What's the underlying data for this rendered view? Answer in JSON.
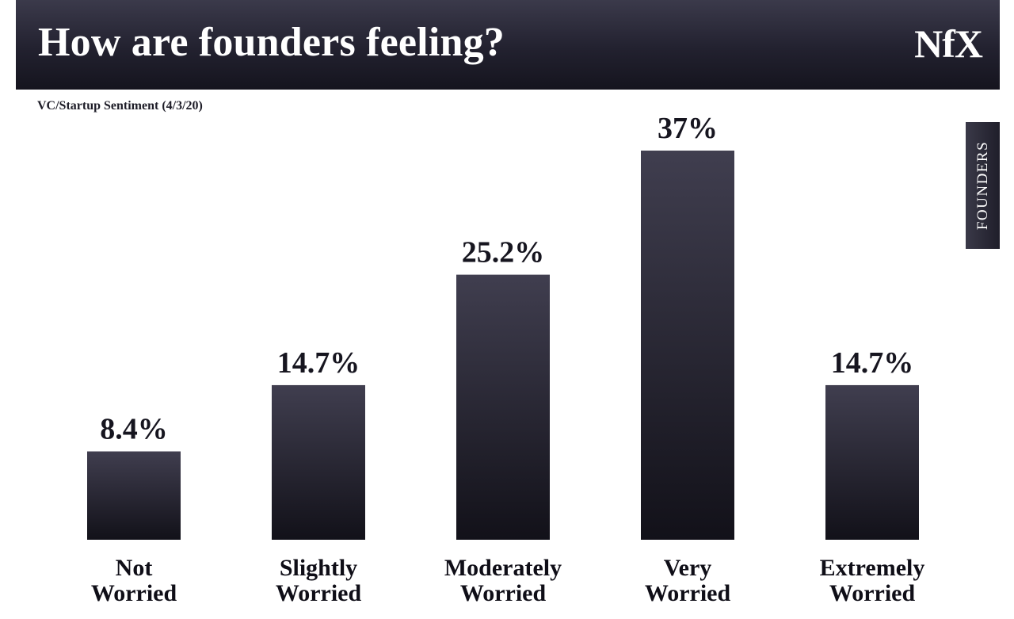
{
  "header": {
    "title": "How are founders feeling?",
    "brand": "NfX"
  },
  "side_tab": {
    "label": "FOUNDERS"
  },
  "colors": {
    "bar_top": "#403e4f",
    "bar_bottom": "#121119",
    "header_bg": "#22212f",
    "text": "#16151f"
  },
  "chart_data": {
    "type": "bar",
    "title": "How are founders feeling?",
    "subtitle": "VC/Startup Sentiment (4/3/20)",
    "xlabel": "",
    "ylabel": "",
    "ylim": [
      0,
      40
    ],
    "grid": false,
    "categories": [
      [
        "Not",
        "Worried"
      ],
      [
        "Slightly",
        "Worried"
      ],
      [
        "Moderately",
        "Worried"
      ],
      [
        "Very",
        "Worried"
      ],
      [
        "Extremely",
        "Worried"
      ]
    ],
    "values": [
      8.4,
      14.7,
      25.2,
      37,
      14.7
    ],
    "value_labels": [
      "8.4%",
      "14.7%",
      "25.2%",
      "37%",
      "14.7%"
    ]
  }
}
